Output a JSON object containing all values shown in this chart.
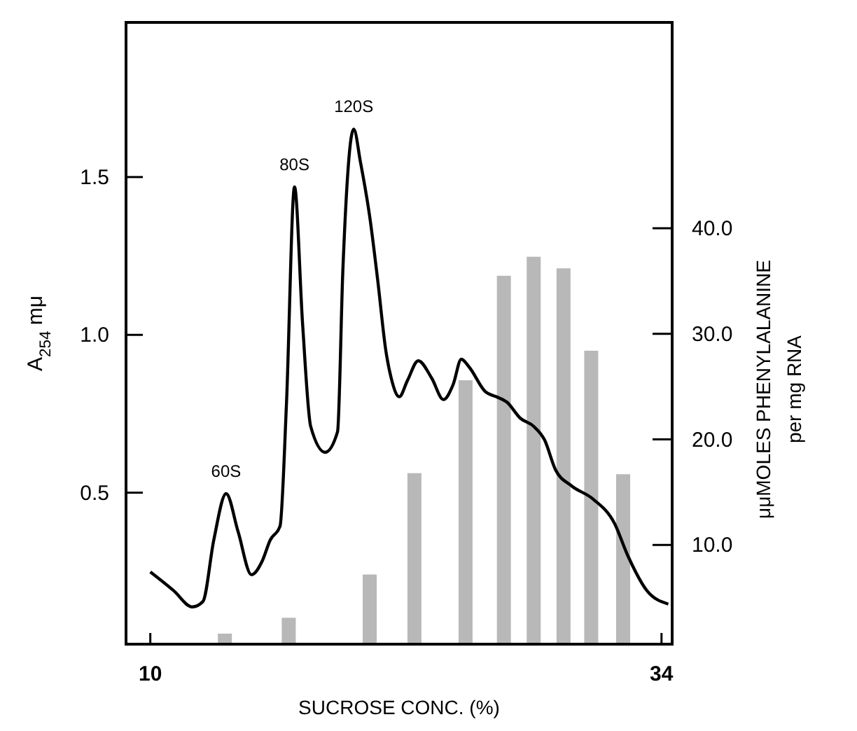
{
  "chart_data": {
    "type": "line",
    "xlabel": "SUCROSE CONC. (%)",
    "ylabel": "A$_{254}$ mμ",
    "y2label": "μμMOLES PHENYLALANINE\nper mg RNA",
    "xlim": [
      8.86,
      34.5
    ],
    "xticks": [
      10,
      34
    ],
    "ylim": [
      0.02,
      1.99
    ],
    "yticks": [
      0.5,
      {
        "value": 1,
        "label": "1.0"
      },
      1.5
    ],
    "y2lim": [
      0.6,
      59.5
    ],
    "y2ticks": [
      {
        "value": 10,
        "label": "10.0"
      },
      {
        "value": 20,
        "label": "20.0"
      },
      {
        "value": 30,
        "label": "30.0"
      },
      {
        "value": 40,
        "label": "40.0"
      }
    ],
    "grid": false,
    "marker": "none",
    "line_style": "solid",
    "series": [
      {
        "type": "bar",
        "axis": "y2",
        "color": "#b8b8b8",
        "x": [
          13.5,
          16.5,
          20.3,
          22.4,
          24.8,
          26.6,
          28.0,
          29.4,
          30.7,
          32.2
        ],
        "values": [
          1.6,
          3.1,
          7.2,
          16.8,
          25.6,
          35.5,
          37.3,
          36.2,
          28.4,
          16.7
        ]
      },
      {
        "axis": "y",
        "color": "#000000",
        "x": [
          10.0,
          11.09,
          11.97,
          12.47,
          12.98,
          13.56,
          14.12,
          14.75,
          15.25,
          15.63,
          16.09,
          16.39,
          16.77,
          17.15,
          17.53,
          18.21,
          18.79,
          19.04,
          19.55,
          19.87,
          20.3,
          20.68,
          21.06,
          21.31,
          21.69,
          22.07,
          22.58,
          23.21,
          23.76,
          24.22,
          24.6,
          24.97,
          25.73,
          26.24,
          26.74,
          27.37,
          28.0,
          28.51,
          29.02,
          29.77,
          30.78,
          31.79,
          32.42,
          33.31,
          34.32
        ],
        "values": [
          0.249,
          0.19,
          0.138,
          0.155,
          0.35,
          0.497,
          0.377,
          0.24,
          0.283,
          0.35,
          0.394,
          0.778,
          1.469,
          1.034,
          0.71,
          0.628,
          0.693,
          1.205,
          1.652,
          1.546,
          1.375,
          1.171,
          0.949,
          0.863,
          0.804,
          0.855,
          0.918,
          0.863,
          0.795,
          0.843,
          0.923,
          0.898,
          0.82,
          0.804,
          0.787,
          0.736,
          0.71,
          0.667,
          0.573,
          0.522,
          0.48,
          0.403,
          0.3,
          0.19,
          0.147
        ]
      }
    ],
    "annotations": [
      {
        "text": "60S",
        "x": 13.56,
        "y": 0.497
      },
      {
        "text": "80S",
        "x": 16.77,
        "y": 1.469
      },
      {
        "text": "120S",
        "x": 19.55,
        "y": 1.652
      }
    ]
  }
}
